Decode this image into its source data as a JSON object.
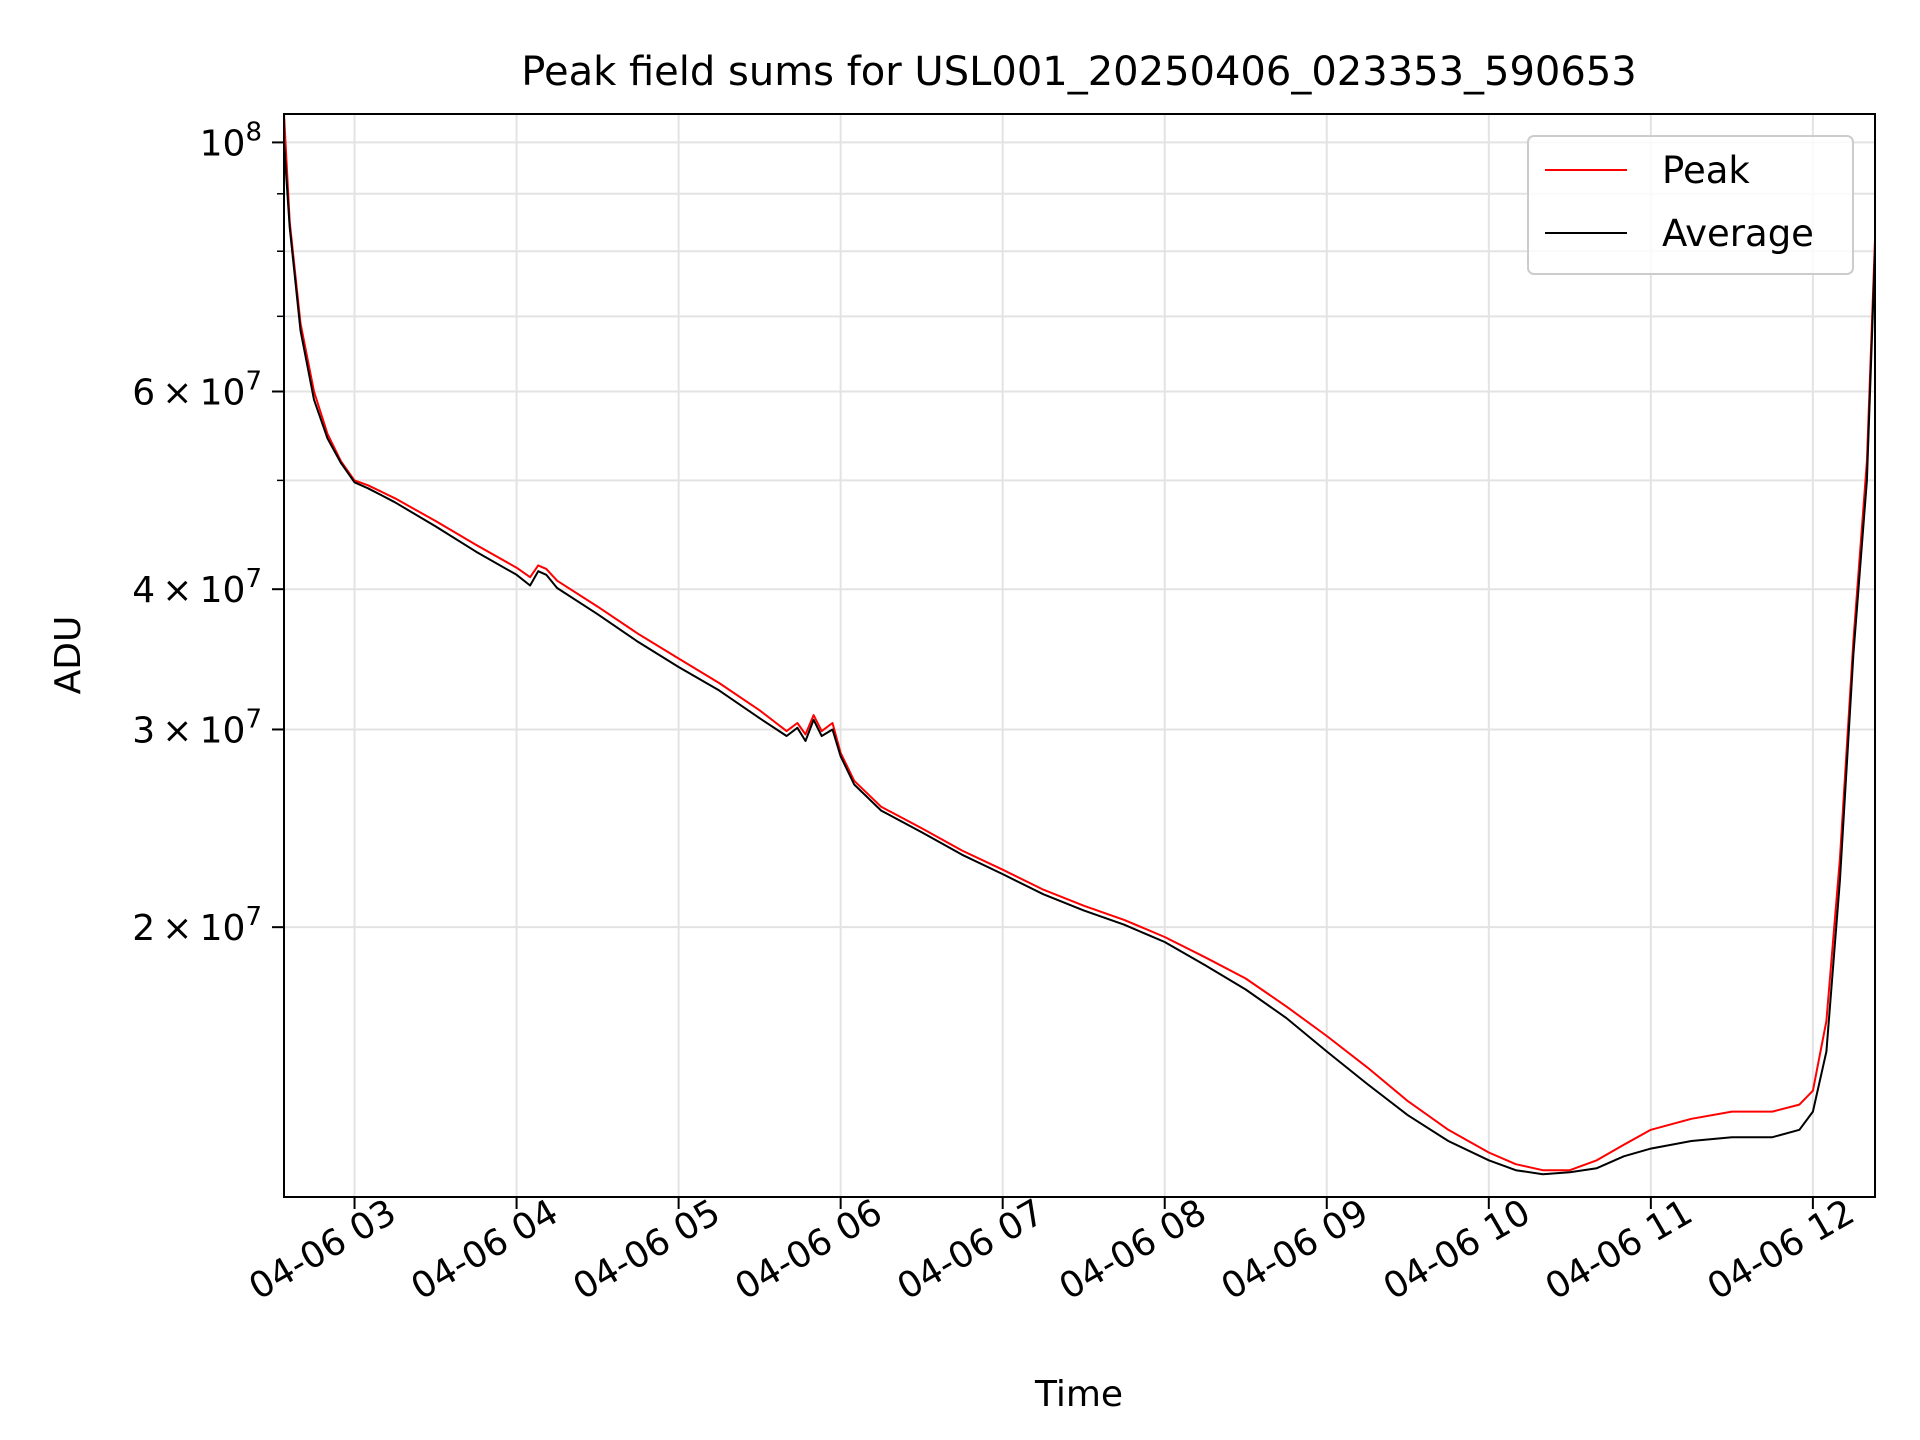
{
  "chart_data": {
    "type": "line",
    "title": "Peak field sums for USL001_20250406_023353_590653",
    "xlabel": "Time",
    "ylabel": "ADU",
    "xlim": [
      "2025-04-06 02:33:53",
      "2025-04-06 12:23:00"
    ],
    "ylim": [
      11500000,
      106000000
    ],
    "yscale": "log",
    "grid": true,
    "legend": "top-right",
    "x_ticks": [
      "2025-04-06 03:00",
      "2025-04-06 04:00",
      "2025-04-06 05:00",
      "2025-04-06 06:00",
      "2025-04-06 07:00",
      "2025-04-06 08:00",
      "2025-04-06 09:00",
      "2025-04-06 10:00",
      "2025-04-06 11:00",
      "2025-04-06 12:00"
    ],
    "x_tick_labels": [
      "04-06 03",
      "04-06 04",
      "04-06 05",
      "04-06 06",
      "04-06 07",
      "04-06 08",
      "04-06 09",
      "04-06 10",
      "04-06 11",
      "04-06 12"
    ],
    "y_ticks": [
      {
        "value": 100000000,
        "mantissa": "",
        "exponent": "8"
      },
      {
        "value": 60000000,
        "mantissa": "6",
        "exponent": "7"
      },
      {
        "value": 40000000,
        "mantissa": "4",
        "exponent": "7"
      },
      {
        "value": 30000000,
        "mantissa": "3",
        "exponent": "7"
      },
      {
        "value": 20000000,
        "mantissa": "2",
        "exponent": "7"
      }
    ],
    "y_minor_ticks": [
      90000000,
      80000000,
      70000000,
      50000000
    ],
    "series": [
      {
        "name": "Peak",
        "color": "#ff0000",
        "x": [
          "2025-04-06 02:33:53",
          "2025-04-06 02:36:00",
          "2025-04-06 02:40:00",
          "2025-04-06 02:45:00",
          "2025-04-06 02:50:00",
          "2025-04-06 02:55:00",
          "2025-04-06 03:00:00",
          "2025-04-06 03:05:00",
          "2025-04-06 03:15:00",
          "2025-04-06 03:30:00",
          "2025-04-06 03:45:00",
          "2025-04-06 04:00:00",
          "2025-04-06 04:05:00",
          "2025-04-06 04:08:00",
          "2025-04-06 04:11:00",
          "2025-04-06 04:15:00",
          "2025-04-06 04:30:00",
          "2025-04-06 04:45:00",
          "2025-04-06 05:00:00",
          "2025-04-06 05:15:00",
          "2025-04-06 05:30:00",
          "2025-04-06 05:40:00",
          "2025-04-06 05:44:00",
          "2025-04-06 05:47:00",
          "2025-04-06 05:50:00",
          "2025-04-06 05:53:00",
          "2025-04-06 05:57:00",
          "2025-04-06 06:00:00",
          "2025-04-06 06:05:00",
          "2025-04-06 06:15:00",
          "2025-04-06 06:30:00",
          "2025-04-06 06:45:00",
          "2025-04-06 07:00:00",
          "2025-04-06 07:15:00",
          "2025-04-06 07:30:00",
          "2025-04-06 07:45:00",
          "2025-04-06 08:00:00",
          "2025-04-06 08:15:00",
          "2025-04-06 08:30:00",
          "2025-04-06 08:45:00",
          "2025-04-06 09:00:00",
          "2025-04-06 09:15:00",
          "2025-04-06 09:30:00",
          "2025-04-06 09:45:00",
          "2025-04-06 10:00:00",
          "2025-04-06 10:10:00",
          "2025-04-06 10:20:00",
          "2025-04-06 10:30:00",
          "2025-04-06 10:40:00",
          "2025-04-06 10:50:00",
          "2025-04-06 11:00:00",
          "2025-04-06 11:15:00",
          "2025-04-06 11:30:00",
          "2025-04-06 11:45:00",
          "2025-04-06 11:55:00",
          "2025-04-06 12:00:00",
          "2025-04-06 12:05:00",
          "2025-04-06 12:10:00",
          "2025-04-06 12:15:00",
          "2025-04-06 12:20:00",
          "2025-04-06 12:23:00"
        ],
        "values": [
          106000000,
          85000000,
          69000000,
          60000000,
          55000000,
          52000000,
          50000000,
          49500000,
          48200000,
          46000000,
          43800000,
          41800000,
          41000000,
          42000000,
          41700000,
          40700000,
          38600000,
          36500000,
          34700000,
          33000000,
          31200000,
          29900000,
          30400000,
          29700000,
          30900000,
          29900000,
          30400000,
          28600000,
          27000000,
          25600000,
          24500000,
          23400000,
          22500000,
          21600000,
          20900000,
          20300000,
          19600000,
          18800000,
          18000000,
          17000000,
          16000000,
          15000000,
          14000000,
          13200000,
          12600000,
          12300000,
          12150000,
          12150000,
          12400000,
          12800000,
          13200000,
          13500000,
          13700000,
          13700000,
          13900000,
          14300000,
          16500000,
          23000000,
          36000000,
          52000000,
          82000000
        ]
      },
      {
        "name": "Average",
        "color": "#000000",
        "x": [
          "2025-04-06 02:33:53",
          "2025-04-06 02:36:00",
          "2025-04-06 02:40:00",
          "2025-04-06 02:45:00",
          "2025-04-06 02:50:00",
          "2025-04-06 02:55:00",
          "2025-04-06 03:00:00",
          "2025-04-06 03:05:00",
          "2025-04-06 03:15:00",
          "2025-04-06 03:30:00",
          "2025-04-06 03:45:00",
          "2025-04-06 04:00:00",
          "2025-04-06 04:05:00",
          "2025-04-06 04:08:00",
          "2025-04-06 04:11:00",
          "2025-04-06 04:15:00",
          "2025-04-06 04:30:00",
          "2025-04-06 04:45:00",
          "2025-04-06 05:00:00",
          "2025-04-06 05:15:00",
          "2025-04-06 05:30:00",
          "2025-04-06 05:40:00",
          "2025-04-06 05:44:00",
          "2025-04-06 05:47:00",
          "2025-04-06 05:50:00",
          "2025-04-06 05:53:00",
          "2025-04-06 05:57:00",
          "2025-04-06 06:00:00",
          "2025-04-06 06:05:00",
          "2025-04-06 06:15:00",
          "2025-04-06 06:30:00",
          "2025-04-06 06:45:00",
          "2025-04-06 07:00:00",
          "2025-04-06 07:15:00",
          "2025-04-06 07:30:00",
          "2025-04-06 07:45:00",
          "2025-04-06 08:00:00",
          "2025-04-06 08:15:00",
          "2025-04-06 08:30:00",
          "2025-04-06 08:45:00",
          "2025-04-06 09:00:00",
          "2025-04-06 09:15:00",
          "2025-04-06 09:30:00",
          "2025-04-06 09:45:00",
          "2025-04-06 10:00:00",
          "2025-04-06 10:10:00",
          "2025-04-06 10:20:00",
          "2025-04-06 10:30:00",
          "2025-04-06 10:40:00",
          "2025-04-06 10:50:00",
          "2025-04-06 11:00:00",
          "2025-04-06 11:15:00",
          "2025-04-06 11:30:00",
          "2025-04-06 11:45:00",
          "2025-04-06 11:55:00",
          "2025-04-06 12:00:00",
          "2025-04-06 12:05:00",
          "2025-04-06 12:10:00",
          "2025-04-06 12:15:00",
          "2025-04-06 12:20:00",
          "2025-04-06 12:23:00"
        ],
        "values": [
          100000000,
          84000000,
          68000000,
          59000000,
          54500000,
          51800000,
          49800000,
          49200000,
          47800000,
          45500000,
          43200000,
          41200000,
          40300000,
          41500000,
          41200000,
          40100000,
          38000000,
          35900000,
          34100000,
          32500000,
          30700000,
          29600000,
          30100000,
          29300000,
          30600000,
          29600000,
          30000000,
          28400000,
          26800000,
          25400000,
          24300000,
          23200000,
          22300000,
          21400000,
          20700000,
          20100000,
          19400000,
          18500000,
          17600000,
          16600000,
          15500000,
          14500000,
          13600000,
          12900000,
          12400000,
          12150000,
          12050000,
          12100000,
          12200000,
          12500000,
          12700000,
          12900000,
          13000000,
          13000000,
          13200000,
          13700000,
          15500000,
          22000000,
          35000000,
          50000000,
          80000000
        ]
      }
    ]
  }
}
